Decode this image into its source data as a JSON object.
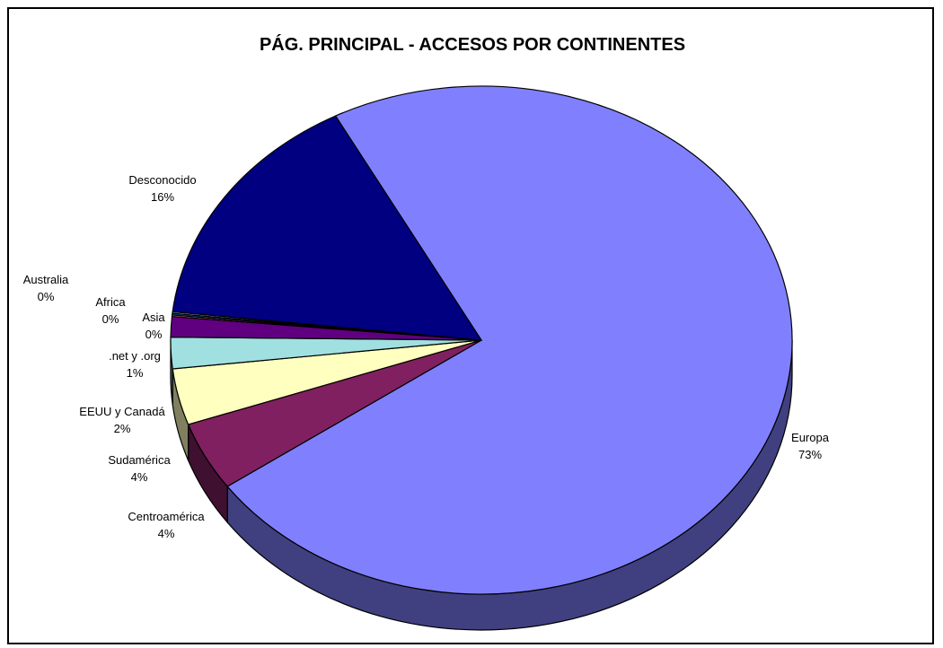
{
  "chart_data": {
    "type": "pie",
    "title": "PÁG. PRINCIPAL - ACCESOS POR CONTINENTES",
    "slices": [
      {
        "label": "Europa",
        "pct_text": "73%",
        "value": 73.3,
        "color": "#8080FF",
        "side_color": "#404080"
      },
      {
        "label": "Centroamérica",
        "pct_text": "4%",
        "value": 4.4,
        "color": "#802060",
        "side_color": "#401030"
      },
      {
        "label": "Sudamérica",
        "pct_text": "4%",
        "value": 3.6,
        "color": "#FFFFC0",
        "side_color": "#808060"
      },
      {
        "label": "EEUU y Canadá",
        "pct_text": "2%",
        "value": 2.0,
        "color": "#A0E0E0",
        "side_color": "#507070"
      },
      {
        "label": ".net y .org",
        "pct_text": "1%",
        "value": 1.3,
        "color": "#600080",
        "side_color": "#300040"
      },
      {
        "label": "Asia",
        "pct_text": "0%",
        "value": 0.1,
        "color": "#FF8080",
        "side_color": "#804040"
      },
      {
        "label": "Africa",
        "pct_text": "0%",
        "value": 0.1,
        "color": "#0080C0",
        "side_color": "#004060"
      },
      {
        "label": "Australia",
        "pct_text": "0%",
        "value": 0.1,
        "color": "#C0C0FF",
        "side_color": "#606080"
      },
      {
        "label": "Desconocido",
        "pct_text": "16%",
        "value": 15.5,
        "color": "#000080",
        "side_color": "#000040"
      }
    ],
    "legend": "none"
  }
}
